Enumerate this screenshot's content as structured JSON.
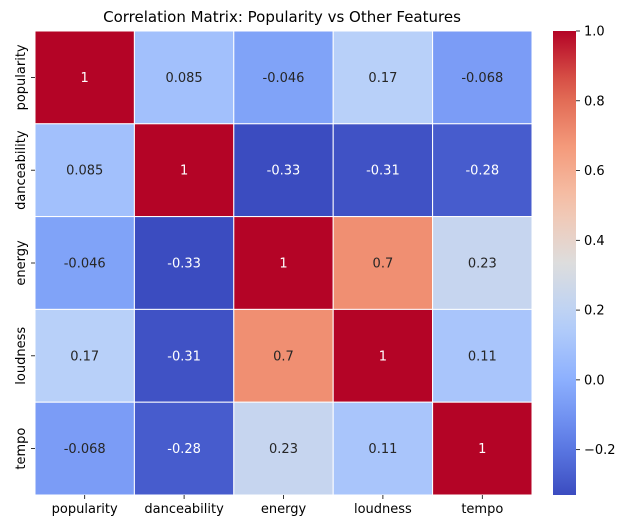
{
  "chart_data": {
    "type": "heatmap",
    "title": "Correlation Matrix: Popularity vs Other Features",
    "columns": [
      "popularity",
      "danceability",
      "energy",
      "loudness",
      "tempo"
    ],
    "rows": [
      "popularity",
      "danceability",
      "energy",
      "loudness",
      "tempo"
    ],
    "values": [
      [
        1,
        0.085,
        -0.046,
        0.17,
        -0.068
      ],
      [
        0.085,
        1,
        -0.33,
        -0.31,
        -0.28
      ],
      [
        -0.046,
        -0.33,
        1,
        0.7,
        0.23
      ],
      [
        0.17,
        -0.31,
        0.7,
        1,
        0.11
      ],
      [
        -0.068,
        -0.28,
        0.23,
        0.11,
        1
      ]
    ],
    "labels": [
      [
        "1",
        "0.085",
        "-0.046",
        "0.17",
        "-0.068"
      ],
      [
        "0.085",
        "1",
        "-0.33",
        "-0.31",
        "-0.28"
      ],
      [
        "-0.046",
        "-0.33",
        "1",
        "0.7",
        "0.23"
      ],
      [
        "0.17",
        "-0.31",
        "0.7",
        "1",
        "0.11"
      ],
      [
        "-0.068",
        "-0.28",
        "0.23",
        "0.11",
        "1"
      ]
    ],
    "colormap": "coolwarm",
    "color_range": [
      -0.33,
      1
    ],
    "colorbar_ticks": [
      -0.2,
      0.0,
      0.2,
      0.4,
      0.6,
      0.8,
      1.0
    ],
    "colorbar_tick_labels": [
      "−0.2",
      "0.0",
      "0.2",
      "0.4",
      "0.6",
      "0.8",
      "1.0"
    ],
    "grid": false,
    "cell_border_color": "#ffffff"
  }
}
